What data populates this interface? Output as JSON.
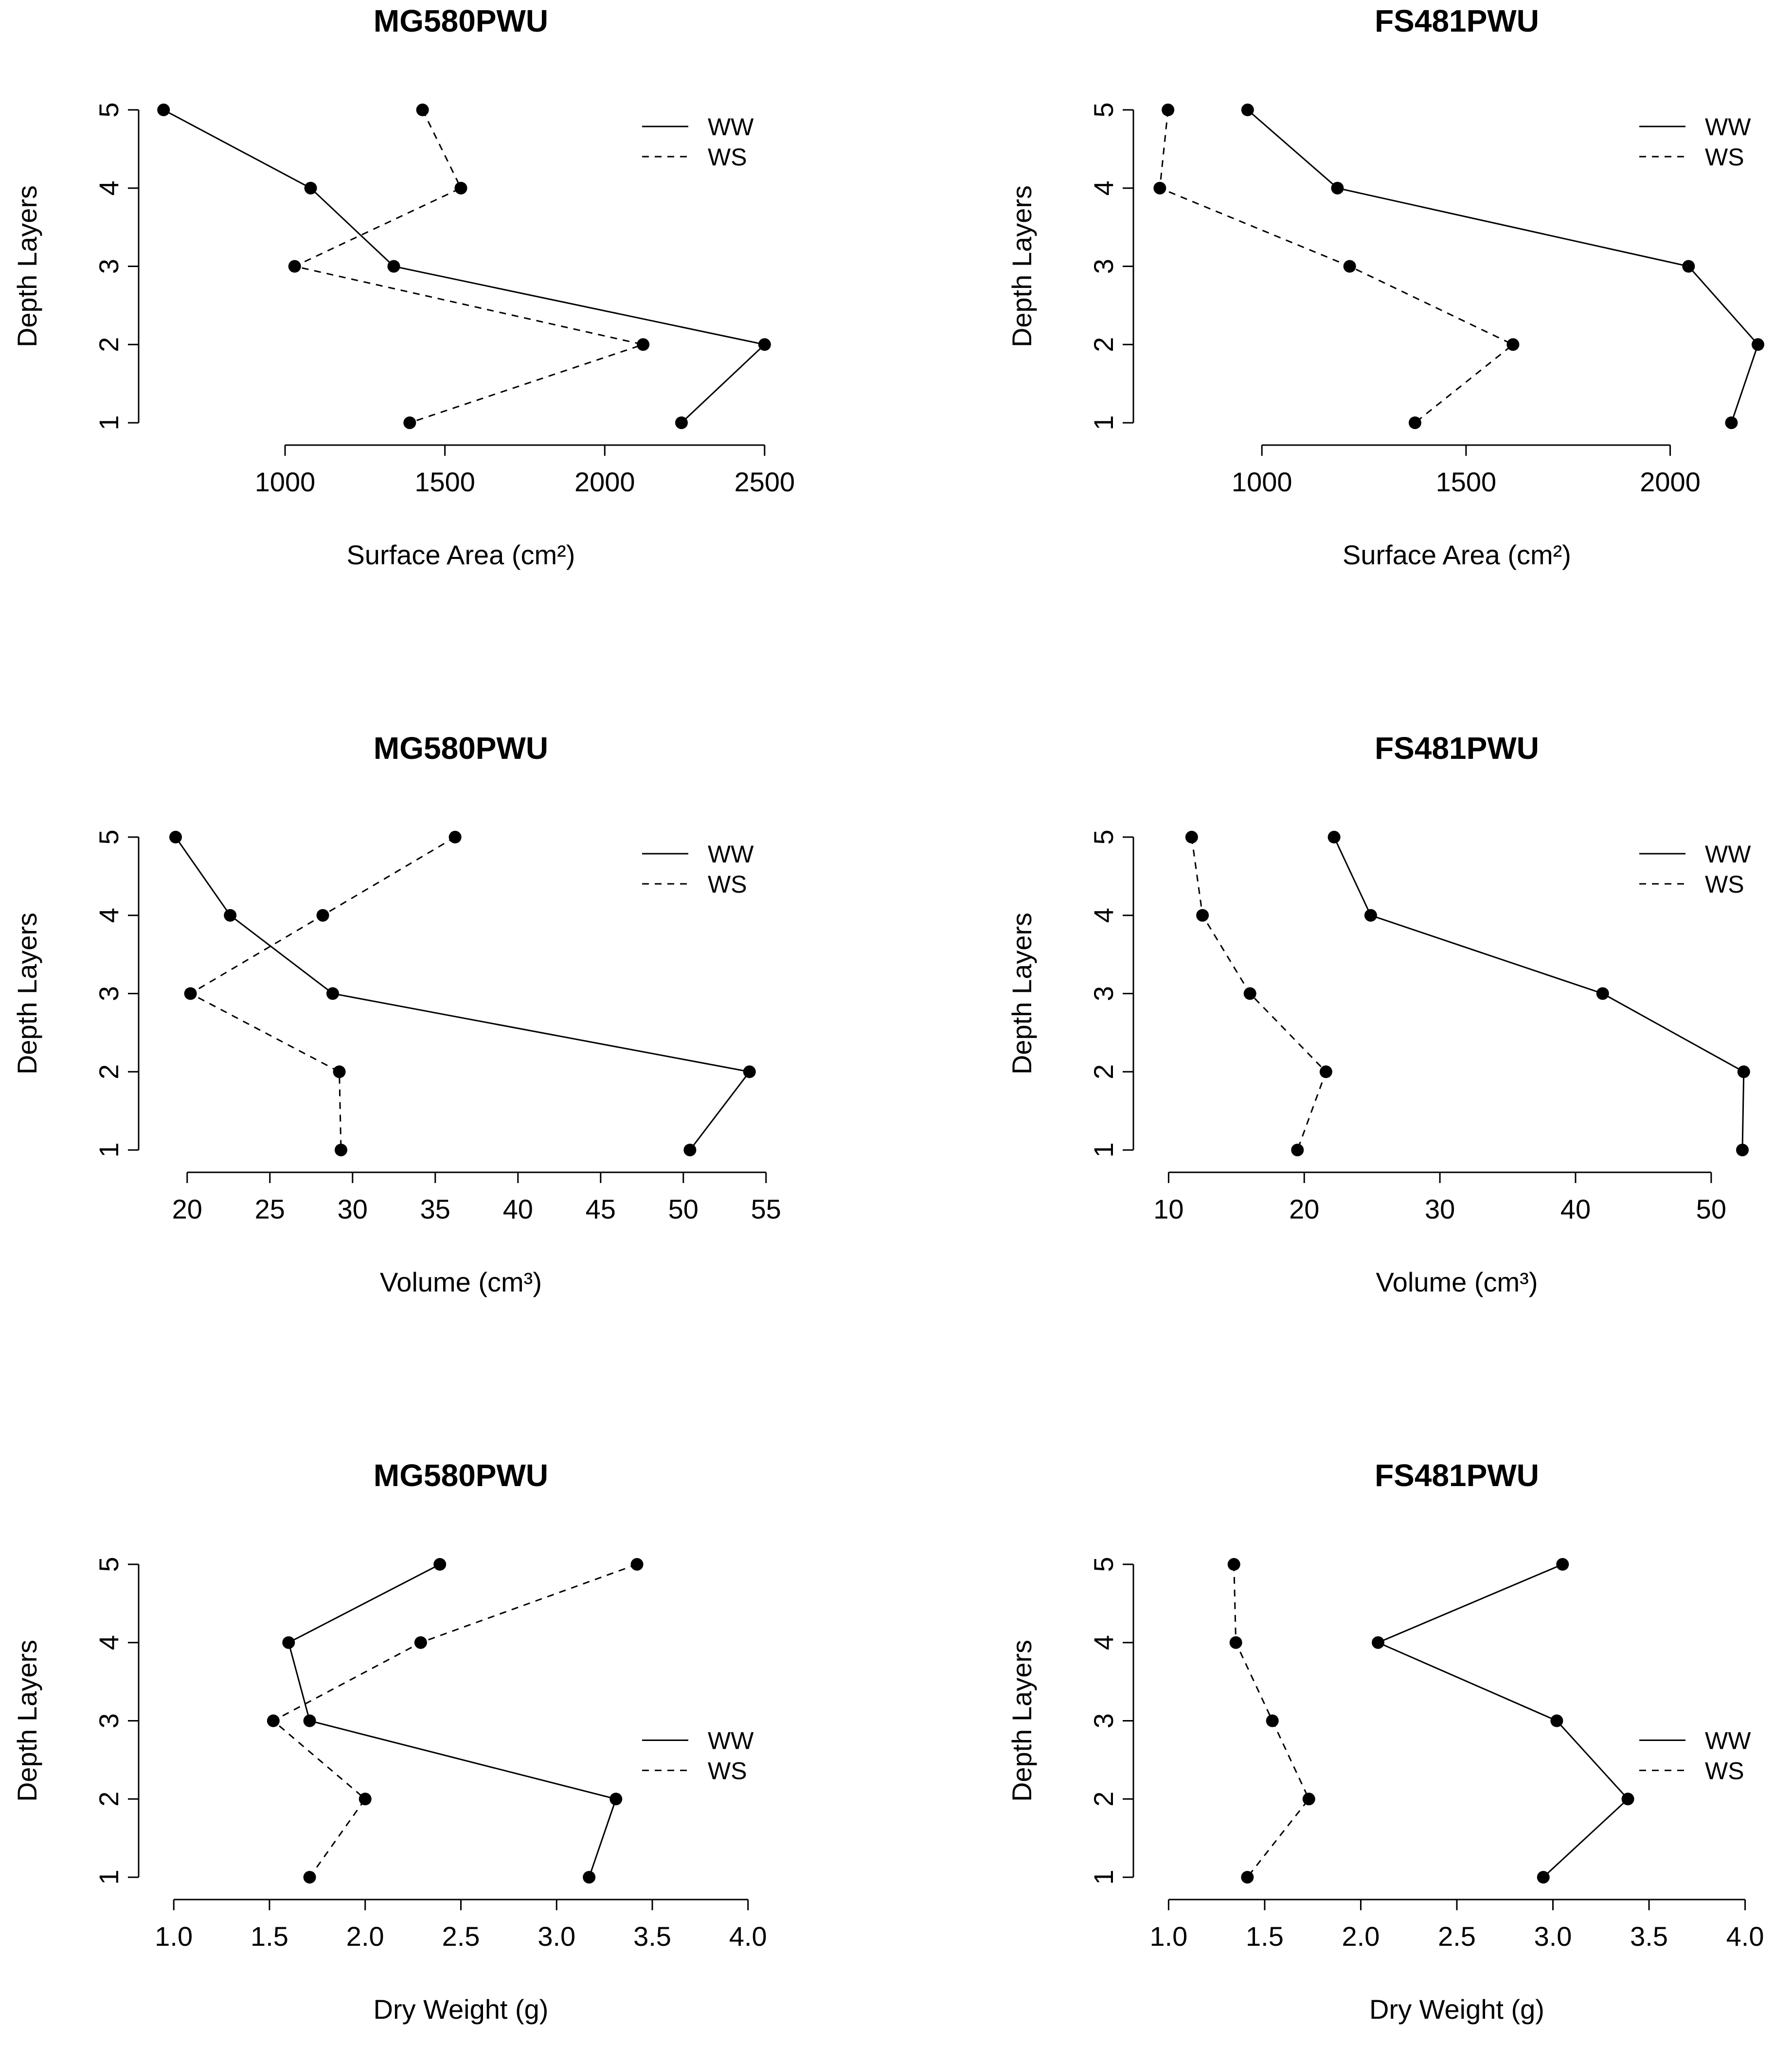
{
  "chart_data": [
    {
      "type": "line",
      "title": "MG580PWU",
      "xlabel": "Surface Area (cm²)",
      "ylabel": "Depth Layers",
      "xlim": [
        580,
        2520
      ],
      "xticks": [
        1000,
        1500,
        2000,
        2500
      ],
      "xtick_labels": [
        "1000",
        "1500",
        "2000",
        "2500"
      ],
      "ylim": [
        0.87,
        5.13
      ],
      "yticks": [
        1,
        2,
        3,
        4,
        5
      ],
      "ytick_labels": [
        "1",
        "2",
        "3",
        "4",
        "5"
      ],
      "legend_position": "top-right",
      "y": [
        5,
        4,
        3,
        2,
        1
      ],
      "series": [
        {
          "name": "WW",
          "style": "solid",
          "values": [
            620,
            1080,
            1340,
            2500,
            2240
          ]
        },
        {
          "name": "WS",
          "style": "dashed",
          "values": [
            1430,
            1550,
            1030,
            2120,
            1390
          ]
        }
      ]
    },
    {
      "type": "line",
      "title": "FS481PWU",
      "xlabel": "Surface Area (cm²)",
      "ylabel": "Depth Layers",
      "xlim": [
        715,
        2240
      ],
      "xticks": [
        1000,
        1500,
        2000
      ],
      "xtick_labels": [
        "1000",
        "1500",
        "2000"
      ],
      "ylim": [
        0.87,
        5.13
      ],
      "yticks": [
        1,
        2,
        3,
        4,
        5
      ],
      "ytick_labels": [
        "1",
        "2",
        "3",
        "4",
        "5"
      ],
      "legend_position": "top-right",
      "y": [
        5,
        4,
        3,
        2,
        1
      ],
      "series": [
        {
          "name": "WW",
          "style": "solid",
          "values": [
            965,
            1185,
            2045,
            2215,
            2150
          ]
        },
        {
          "name": "WS",
          "style": "dashed",
          "values": [
            770,
            750,
            1215,
            1615,
            1375
          ]
        }
      ]
    },
    {
      "type": "line",
      "title": "MG580PWU",
      "xlabel": "Volume (cm³)",
      "ylabel": "Depth Layers",
      "xlim": [
        17.8,
        55.3
      ],
      "xticks": [
        20,
        25,
        30,
        35,
        40,
        45,
        50,
        55
      ],
      "xtick_labels": [
        "20",
        "25",
        "30",
        "35",
        "40",
        "45",
        "50",
        "55"
      ],
      "ylim": [
        0.87,
        5.13
      ],
      "yticks": [
        1,
        2,
        3,
        4,
        5
      ],
      "ytick_labels": [
        "1",
        "2",
        "3",
        "4",
        "5"
      ],
      "legend_position": "top-right",
      "y": [
        5,
        4,
        3,
        2,
        1
      ],
      "series": [
        {
          "name": "WW",
          "style": "solid",
          "values": [
            19.3,
            22.6,
            28.8,
            54.0,
            50.4
          ]
        },
        {
          "name": "WS",
          "style": "dashed",
          "values": [
            36.2,
            28.2,
            20.2,
            29.2,
            29.3
          ]
        }
      ]
    },
    {
      "type": "line",
      "title": "FS481PWU",
      "xlabel": "Volume (cm³)",
      "ylabel": "Depth Layers",
      "xlim": [
        8.3,
        54.2
      ],
      "xticks": [
        10,
        20,
        30,
        40,
        50
      ],
      "xtick_labels": [
        "10",
        "20",
        "30",
        "40",
        "50"
      ],
      "ylim": [
        0.87,
        5.13
      ],
      "yticks": [
        1,
        2,
        3,
        4,
        5
      ],
      "ytick_labels": [
        "1",
        "2",
        "3",
        "4",
        "5"
      ],
      "legend_position": "top-right",
      "y": [
        5,
        4,
        3,
        2,
        1
      ],
      "series": [
        {
          "name": "WW",
          "style": "solid",
          "values": [
            22.2,
            24.9,
            42.0,
            52.4,
            52.3
          ]
        },
        {
          "name": "WS",
          "style": "dashed",
          "values": [
            11.7,
            12.5,
            16.0,
            21.6,
            19.5
          ]
        }
      ]
    },
    {
      "type": "line",
      "title": "MG580PWU",
      "xlabel": "Dry Weight (g)",
      "ylabel": "Depth Layers",
      "xlim": [
        0.88,
        4.12
      ],
      "xticks": [
        1.0,
        1.5,
        2.0,
        2.5,
        3.0,
        3.5,
        4.0
      ],
      "xtick_labels": [
        "1.0",
        "1.5",
        "2.0",
        "2.5",
        "3.0",
        "3.5",
        "4.0"
      ],
      "ylim": [
        0.87,
        5.13
      ],
      "yticks": [
        1,
        2,
        3,
        4,
        5
      ],
      "ytick_labels": [
        "1",
        "2",
        "3",
        "4",
        "5"
      ],
      "legend_position": "right",
      "y": [
        5,
        4,
        3,
        2,
        1
      ],
      "series": [
        {
          "name": "WW",
          "style": "solid",
          "values": [
            2.39,
            1.6,
            1.71,
            3.31,
            3.17
          ]
        },
        {
          "name": "WS",
          "style": "dashed",
          "values": [
            3.42,
            2.29,
            1.52,
            2.0,
            1.71
          ]
        }
      ]
    },
    {
      "type": "line",
      "title": "FS481PWU",
      "xlabel": "Dry Weight (g)",
      "ylabel": "Depth Layers",
      "xlim": [
        0.88,
        4.12
      ],
      "xticks": [
        1.0,
        1.5,
        2.0,
        2.5,
        3.0,
        3.5,
        4.0
      ],
      "xtick_labels": [
        "1.0",
        "1.5",
        "2.0",
        "2.5",
        "3.0",
        "3.5",
        "4.0"
      ],
      "ylim": [
        0.87,
        5.13
      ],
      "yticks": [
        1,
        2,
        3,
        4,
        5
      ],
      "ytick_labels": [
        "1",
        "2",
        "3",
        "4",
        "5"
      ],
      "legend_position": "right",
      "y": [
        5,
        4,
        3,
        2,
        1
      ],
      "series": [
        {
          "name": "WW",
          "style": "solid",
          "values": [
            3.05,
            2.09,
            3.02,
            3.39,
            2.95
          ]
        },
        {
          "name": "WS",
          "style": "dashed",
          "values": [
            1.34,
            1.35,
            1.54,
            1.73,
            1.41
          ]
        }
      ]
    }
  ]
}
